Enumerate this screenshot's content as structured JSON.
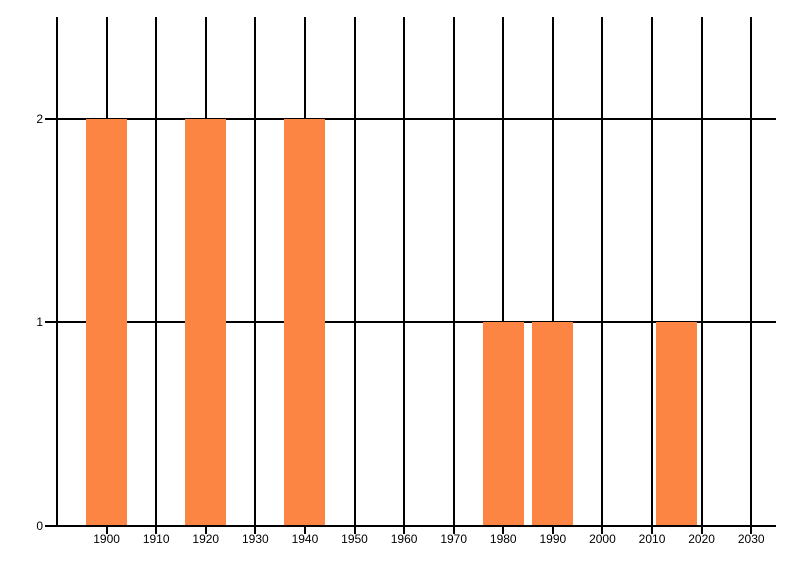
{
  "chart_data": {
    "type": "bar",
    "title": "",
    "xlabel": "",
    "ylabel": "",
    "x": [
      1900,
      1920,
      1940,
      1980,
      1990,
      2015
    ],
    "values": [
      2,
      2,
      2,
      1,
      1,
      1
    ],
    "xlim": [
      1890,
      2035
    ],
    "ylim": [
      0,
      2.5
    ],
    "x_ticks": [
      1900,
      1910,
      1920,
      1930,
      1940,
      1950,
      1960,
      1970,
      1980,
      1990,
      2000,
      2010,
      2020,
      2030
    ],
    "y_ticks": [
      0,
      1,
      2
    ],
    "bar_width_years": 8.3,
    "grid": "on",
    "legend": "none",
    "colors": {
      "bar": "#FD8543",
      "axis": "#000000",
      "gridline": "#000000",
      "tick_label": "#000000",
      "background": "#FFFFFF"
    }
  }
}
